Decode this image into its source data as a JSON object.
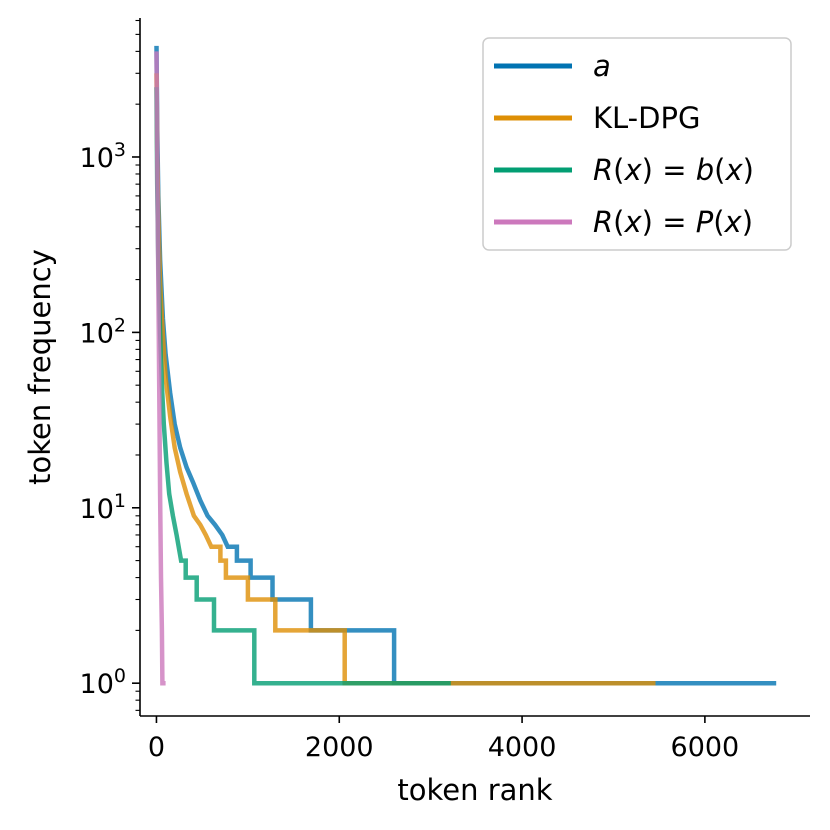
{
  "chart_data": {
    "type": "line",
    "title": "",
    "xlabel": "token rank",
    "ylabel": "token frequency",
    "xlim": [
      -180,
      7150
    ],
    "ylim": [
      0.65,
      6200
    ],
    "yscale": "log",
    "x_ticks": [
      {
        "value": 0,
        "label": "0"
      },
      {
        "value": 2000,
        "label": "2000"
      },
      {
        "value": 4000,
        "label": "4000"
      },
      {
        "value": 6000,
        "label": "6000"
      }
    ],
    "y_ticks": [
      {
        "value": 1,
        "base": "10",
        "exp": "0"
      },
      {
        "value": 10,
        "base": "10",
        "exp": "1"
      },
      {
        "value": 100,
        "base": "10",
        "exp": "2"
      },
      {
        "value": 1000,
        "base": "10",
        "exp": "3"
      }
    ],
    "legend_position": "top-right",
    "series": [
      {
        "name": "a",
        "color": "#0173b2",
        "points": [
          [
            0,
            4300
          ],
          [
            8,
            1500
          ],
          [
            20,
            600
          ],
          [
            40,
            260
          ],
          [
            70,
            120
          ],
          [
            100,
            75
          ],
          [
            150,
            45
          ],
          [
            200,
            30
          ],
          [
            260,
            22
          ],
          [
            330,
            17
          ],
          [
            400,
            14
          ],
          [
            480,
            11
          ],
          [
            560,
            9
          ],
          [
            640,
            8
          ],
          [
            720,
            7
          ],
          [
            780,
            6
          ],
          [
            880,
            6
          ],
          [
            880,
            5
          ],
          [
            1030,
            5
          ],
          [
            1030,
            4
          ],
          [
            1270,
            4
          ],
          [
            1270,
            3
          ],
          [
            1690,
            3
          ],
          [
            1690,
            2
          ],
          [
            2600,
            2
          ],
          [
            2600,
            1
          ],
          [
            6780,
            1
          ]
        ]
      },
      {
        "name": "KL-DPG",
        "color": "#de8f05",
        "points": [
          [
            0,
            3000
          ],
          [
            8,
            1100
          ],
          [
            20,
            450
          ],
          [
            40,
            190
          ],
          [
            70,
            95
          ],
          [
            100,
            55
          ],
          [
            150,
            33
          ],
          [
            200,
            22
          ],
          [
            260,
            16
          ],
          [
            330,
            12
          ],
          [
            410,
            9
          ],
          [
            480,
            8
          ],
          [
            540,
            7
          ],
          [
            600,
            6
          ],
          [
            700,
            6
          ],
          [
            700,
            5
          ],
          [
            760,
            5
          ],
          [
            760,
            4
          ],
          [
            1000,
            4
          ],
          [
            1000,
            3
          ],
          [
            1300,
            3
          ],
          [
            1300,
            2
          ],
          [
            2060,
            2
          ],
          [
            2060,
            1
          ],
          [
            5460,
            1
          ]
        ]
      },
      {
        "name": "R(x) = b(x)",
        "color": "#029e73",
        "points": [
          [
            0,
            2500
          ],
          [
            8,
            700
          ],
          [
            20,
            250
          ],
          [
            40,
            100
          ],
          [
            60,
            50
          ],
          [
            80,
            30
          ],
          [
            110,
            18
          ],
          [
            140,
            12
          ],
          [
            180,
            9
          ],
          [
            220,
            7
          ],
          [
            270,
            5
          ],
          [
            320,
            5
          ],
          [
            320,
            4
          ],
          [
            440,
            4
          ],
          [
            440,
            3
          ],
          [
            630,
            3
          ],
          [
            630,
            2
          ],
          [
            1070,
            2
          ],
          [
            1070,
            1
          ],
          [
            3220,
            1
          ]
        ]
      },
      {
        "name": "R(x) = P(x)",
        "color": "#cc78bc",
        "points": [
          [
            0,
            4000
          ],
          [
            10,
            800
          ],
          [
            20,
            200
          ],
          [
            30,
            50
          ],
          [
            40,
            12
          ],
          [
            50,
            4
          ],
          [
            60,
            2
          ],
          [
            65,
            1
          ],
          [
            100,
            1
          ]
        ]
      }
    ],
    "legend": [
      {
        "parts": [
          {
            "text": "a",
            "math": true
          }
        ]
      },
      {
        "parts": [
          {
            "text": "KL-DPG",
            "math": false
          }
        ]
      },
      {
        "parts": [
          {
            "text": "R",
            "math": true
          },
          {
            "text": "(",
            "math": false
          },
          {
            "text": "x",
            "math": true
          },
          {
            "text": ") = ",
            "math": false
          },
          {
            "text": "b",
            "math": true
          },
          {
            "text": "(",
            "math": false
          },
          {
            "text": "x",
            "math": true
          },
          {
            "text": ")",
            "math": false
          }
        ]
      },
      {
        "parts": [
          {
            "text": "R",
            "math": true
          },
          {
            "text": "(",
            "math": false
          },
          {
            "text": "x",
            "math": true
          },
          {
            "text": ") = ",
            "math": false
          },
          {
            "text": "P",
            "math": true
          },
          {
            "text": "(",
            "math": false
          },
          {
            "text": "x",
            "math": true
          },
          {
            "text": ")",
            "math": false
          }
        ]
      }
    ]
  }
}
